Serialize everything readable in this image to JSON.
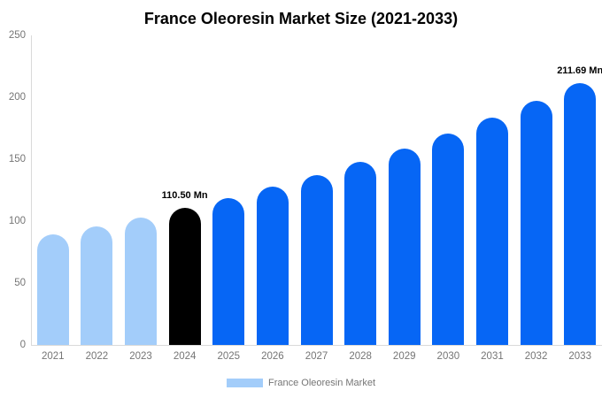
{
  "chart_data": {
    "type": "bar",
    "title": "France Oleoresin Market Size (2021-2033)",
    "categories": [
      "2021",
      "2022",
      "2023",
      "2024",
      "2025",
      "2026",
      "2027",
      "2028",
      "2029",
      "2030",
      "2031",
      "2032",
      "2033"
    ],
    "values": [
      88.97,
      95.63,
      102.8,
      110.5,
      118.78,
      127.68,
      137.24,
      147.53,
      158.58,
      170.46,
      183.24,
      196.97,
      211.69
    ],
    "value_unit": "Mn",
    "xlabel": "",
    "ylabel": "",
    "ylim": [
      0,
      250
    ],
    "yticks": [
      0,
      50,
      100,
      150,
      200,
      250
    ],
    "grid": false,
    "data_labels": [
      {
        "category": "2024",
        "text": "110.50 Mn"
      },
      {
        "category": "2033",
        "text": "211.69 Mn"
      }
    ],
    "bar_colors": [
      "#A3CDFA",
      "#A3CDFA",
      "#A3CDFA",
      "#000000",
      "#0666F5",
      "#0666F5",
      "#0666F5",
      "#0666F5",
      "#0666F5",
      "#0666F5",
      "#0666F5",
      "#0666F5",
      "#0666F5"
    ],
    "colors": {
      "historical_bar": "#A3CDFA",
      "base_year_bar": "#000000",
      "forecast_bar": "#0666F5",
      "axis_line": "#DADADA",
      "tick_text": "#757575",
      "title_text": "#000000"
    },
    "legend": {
      "position": "bottom",
      "label": "France Oleoresin Market",
      "swatch_color": "#A3CDFA"
    }
  }
}
